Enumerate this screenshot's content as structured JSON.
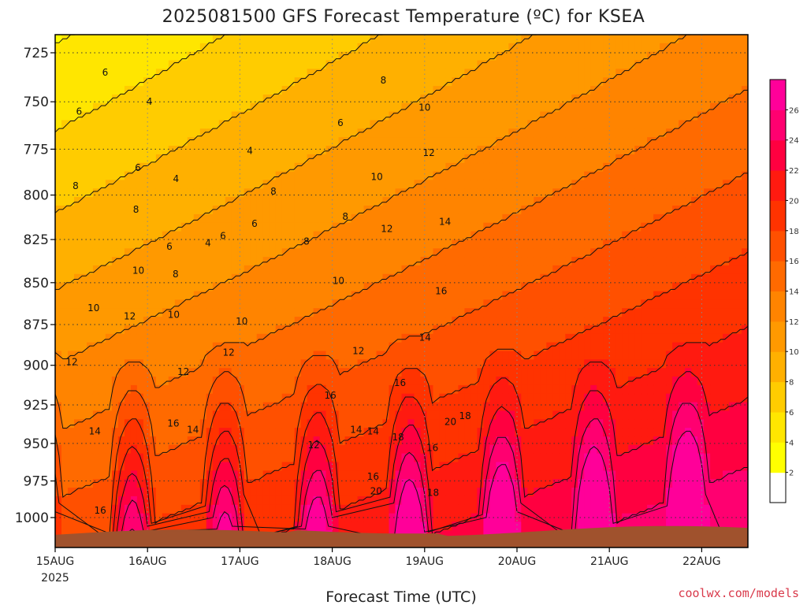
{
  "chart_data": {
    "type": "heatmap",
    "title": "2025081500 GFS Forecast Temperature (ºC) for KSEA",
    "xlabel": "Forecast Time (UTC)",
    "ylabel": "",
    "x_ticks": [
      "15AUG",
      "16AUG",
      "17AUG",
      "18AUG",
      "19AUG",
      "20AUG",
      "21AUG",
      "22AUG"
    ],
    "x_year": "2025",
    "xlim_hours": [
      0,
      180
    ],
    "y_ticks": [
      725,
      750,
      775,
      800,
      825,
      850,
      875,
      900,
      925,
      950,
      975,
      1000
    ],
    "ylim_hpa": [
      710,
      1018
    ],
    "y_scale": "log-pressure (inverted)",
    "grid": "dotted",
    "colorbar": {
      "ticks": [
        2,
        4,
        6,
        8,
        10,
        12,
        14,
        16,
        18,
        20,
        22,
        24,
        26
      ],
      "colors": [
        "#ffffff",
        "#ffff00",
        "#ffe600",
        "#ffcc00",
        "#ffb000",
        "#ff9900",
        "#ff8400",
        "#ff6a00",
        "#ff5000",
        "#ff3300",
        "#ff1a10",
        "#ff0040",
        "#ff0070",
        "#ff0099"
      ],
      "position": "right"
    },
    "contour_levels": [
      2,
      4,
      6,
      8,
      10,
      12,
      14,
      16,
      18,
      20,
      22,
      24
    ],
    "contour_labels": [
      {
        "text": "6",
        "hour": 6.2,
        "hpa": 755
      },
      {
        "text": "6",
        "hour": 13,
        "hpa": 735
      },
      {
        "text": "8",
        "hour": 5.3,
        "hpa": 795
      },
      {
        "text": "10",
        "hour": 10,
        "hpa": 865
      },
      {
        "text": "12",
        "hour": 4.3,
        "hpa": 898
      },
      {
        "text": "14",
        "hour": 10.3,
        "hpa": 942
      },
      {
        "text": "16",
        "hour": 11.7,
        "hpa": 995
      },
      {
        "text": "4",
        "hour": 24.5,
        "hpa": 750
      },
      {
        "text": "6",
        "hour": 21.5,
        "hpa": 785
      },
      {
        "text": "8",
        "hour": 21,
        "hpa": 808
      },
      {
        "text": "10",
        "hour": 21.6,
        "hpa": 843
      },
      {
        "text": "12",
        "hour": 19.4,
        "hpa": 870
      },
      {
        "text": "4",
        "hour": 31.4,
        "hpa": 791
      },
      {
        "text": "6",
        "hour": 29.7,
        "hpa": 829
      },
      {
        "text": "8",
        "hour": 31.3,
        "hpa": 845
      },
      {
        "text": "10",
        "hour": 30.8,
        "hpa": 869
      },
      {
        "text": "12",
        "hour": 33.3,
        "hpa": 904
      },
      {
        "text": "16",
        "hour": 30.7,
        "hpa": 937
      },
      {
        "text": "14",
        "hour": 35.8,
        "hpa": 941
      },
      {
        "text": "4",
        "hour": 39.7,
        "hpa": 827
      },
      {
        "text": "6",
        "hour": 43.6,
        "hpa": 823
      },
      {
        "text": "10",
        "hour": 48.5,
        "hpa": 873
      },
      {
        "text": "12",
        "hour": 45.1,
        "hpa": 892
      },
      {
        "text": "4",
        "hour": 50.6,
        "hpa": 776
      },
      {
        "text": "6",
        "hour": 51.8,
        "hpa": 816
      },
      {
        "text": "8",
        "hour": 56.7,
        "hpa": 798
      },
      {
        "text": "8",
        "hour": 65.3,
        "hpa": 826
      },
      {
        "text": "12",
        "hour": 67.2,
        "hpa": 951
      },
      {
        "text": "6",
        "hour": 74.1,
        "hpa": 761
      },
      {
        "text": "8",
        "hour": 75.4,
        "hpa": 812
      },
      {
        "text": "10",
        "hour": 73.6,
        "hpa": 849
      },
      {
        "text": "12",
        "hour": 78.8,
        "hpa": 891
      },
      {
        "text": "16",
        "hour": 71.5,
        "hpa": 919
      },
      {
        "text": "14",
        "hour": 78.2,
        "hpa": 941
      },
      {
        "text": "14",
        "hour": 82.6,
        "hpa": 942
      },
      {
        "text": "16",
        "hour": 82.6,
        "hpa": 972
      },
      {
        "text": "20",
        "hour": 83.4,
        "hpa": 982
      },
      {
        "text": "8",
        "hour": 85.3,
        "hpa": 739
      },
      {
        "text": "10",
        "hour": 83.6,
        "hpa": 790
      },
      {
        "text": "12",
        "hour": 86.2,
        "hpa": 819
      },
      {
        "text": "16",
        "hour": 89.6,
        "hpa": 911
      },
      {
        "text": "18",
        "hour": 89.1,
        "hpa": 946
      },
      {
        "text": "10",
        "hour": 96,
        "hpa": 753
      },
      {
        "text": "12",
        "hour": 97.1,
        "hpa": 777
      },
      {
        "text": "14",
        "hour": 101.3,
        "hpa": 815
      },
      {
        "text": "16",
        "hour": 100.3,
        "hpa": 855
      },
      {
        "text": "14",
        "hour": 96.1,
        "hpa": 883
      },
      {
        "text": "20",
        "hour": 102.7,
        "hpa": 936
      },
      {
        "text": "18",
        "hour": 106.5,
        "hpa": 932
      },
      {
        "text": "16",
        "hour": 98,
        "hpa": 953
      },
      {
        "text": "18",
        "hour": 98.2,
        "hpa": 983
      }
    ],
    "surface_terrain_color": "#a0522d"
  },
  "credit": "coolwx.com/models"
}
